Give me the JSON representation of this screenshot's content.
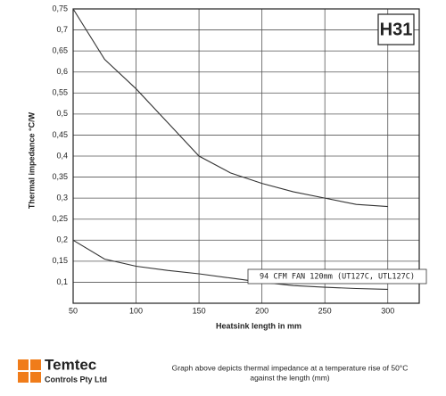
{
  "chart_data": {
    "type": "line",
    "ylabel": "Thermal impedance °C/W",
    "xlabel": "Heatsink length in mm",
    "badge": "H31",
    "annotation": "94 CFM FAN 120mm (UT127C, UTL127C)",
    "x": [
      50,
      75,
      100,
      125,
      150,
      175,
      200,
      225,
      250,
      275,
      300
    ],
    "series": [
      {
        "color": "#333333",
        "values": [
          0.75,
          0.63,
          0.56,
          0.48,
          0.4,
          0.36,
          0.335,
          0.315,
          0.3,
          0.285,
          0.28
        ]
      },
      {
        "color": "#333333",
        "values": [
          0.2,
          0.155,
          0.138,
          0.128,
          0.12,
          0.11,
          0.1,
          0.092,
          0.088,
          0.085,
          0.083
        ]
      }
    ],
    "xlim": [
      50,
      325
    ],
    "xticks": [
      50,
      100,
      150,
      200,
      250,
      300
    ],
    "ylim": [
      0.05,
      0.75
    ],
    "yticks": [
      {
        "value": 0.1,
        "label": "0,1"
      },
      {
        "value": 0.15,
        "label": "0,15"
      },
      {
        "value": 0.2,
        "label": "0,2"
      },
      {
        "value": 0.25,
        "label": "0,25"
      },
      {
        "value": 0.3,
        "label": "0,3"
      },
      {
        "value": 0.35,
        "label": "0,35"
      },
      {
        "value": 0.4,
        "label": "0,4"
      },
      {
        "value": 0.45,
        "label": "0,45"
      },
      {
        "value": 0.5,
        "label": "0,5"
      },
      {
        "value": 0.55,
        "label": "0,55"
      },
      {
        "value": 0.6,
        "label": "0,6"
      },
      {
        "value": 0.65,
        "label": "0,65"
      },
      {
        "value": 0.7,
        "label": "0,7"
      },
      {
        "value": 0.75,
        "label": "0,75"
      }
    ],
    "grid": true
  },
  "footer": {
    "brand": "Temtec",
    "company": "Controls Pty Ltd",
    "caption": [
      "Graph above depicts thermal impedance at a temperature rise of 50°C",
      "against the length (mm)"
    ]
  }
}
